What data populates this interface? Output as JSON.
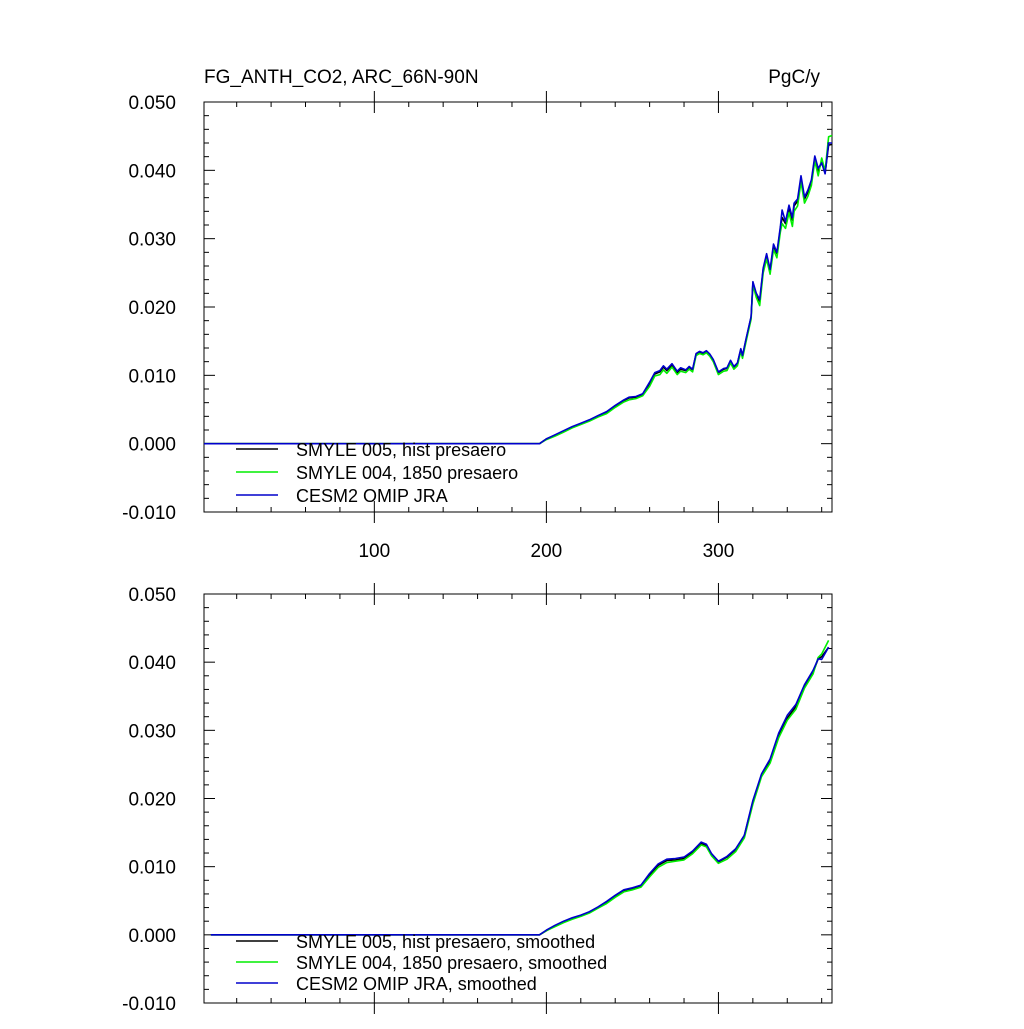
{
  "chart_data": [
    {
      "type": "line",
      "title_left": "FG_ANTH_CO2, ARC_66N-90N",
      "title_right": "PgC/y",
      "xlabel": "",
      "ylabel": "",
      "xlim": [
        1,
        366
      ],
      "ylim": [
        -0.01,
        0.05
      ],
      "x_ticks": [
        100,
        200,
        300
      ],
      "x_tick_labels": [
        "100",
        "200",
        "300"
      ],
      "y_ticks": [
        -0.01,
        0.0,
        0.01,
        0.02,
        0.03,
        0.04,
        0.05
      ],
      "y_tick_labels": [
        "-0.010",
        "0.000",
        "0.010",
        "0.020",
        "0.030",
        "0.040",
        "0.050"
      ],
      "grid": false,
      "legend_position": "bottom-left",
      "series": [
        {
          "name": "SMYLE 005, hist presaero",
          "color": "#000000",
          "x": [
            1,
            196,
            200,
            205,
            210,
            215,
            220,
            225,
            230,
            235,
            240,
            245,
            248,
            252,
            256,
            260,
            263,
            266,
            268,
            270,
            273,
            276,
            278,
            281,
            283,
            285,
            287,
            289,
            291,
            293,
            295,
            297,
            300,
            303,
            305,
            307,
            309,
            311,
            313,
            314,
            316,
            317,
            319,
            320,
            322,
            324,
            326,
            328,
            330,
            332,
            334,
            336,
            337,
            339,
            341,
            343,
            344,
            346,
            348,
            350,
            352,
            354,
            356,
            358,
            360,
            362,
            364,
            366
          ],
          "y": [
            0.0,
            0.0,
            0.0007,
            0.0012,
            0.0018,
            0.0024,
            0.0029,
            0.0034,
            0.004,
            0.0046,
            0.0055,
            0.0063,
            0.0067,
            0.0068,
            0.0072,
            0.0088,
            0.0102,
            0.0105,
            0.0112,
            0.0107,
            0.0115,
            0.0104,
            0.0109,
            0.0107,
            0.0112,
            0.0108,
            0.0131,
            0.0134,
            0.0132,
            0.0135,
            0.013,
            0.0122,
            0.0104,
            0.0109,
            0.011,
            0.0121,
            0.0112,
            0.0117,
            0.0138,
            0.0128,
            0.0152,
            0.0163,
            0.0185,
            0.0235,
            0.0218,
            0.0208,
            0.0255,
            0.0275,
            0.0253,
            0.0289,
            0.0278,
            0.0315,
            0.0331,
            0.0322,
            0.0345,
            0.0327,
            0.0348,
            0.0355,
            0.0388,
            0.0358,
            0.0368,
            0.0383,
            0.0418,
            0.0399,
            0.0412,
            0.0396,
            0.0437,
            0.0438
          ]
        },
        {
          "name": "SMYLE 004, 1850 presaero",
          "color": "#00ee00",
          "x": [
            1,
            196,
            200,
            205,
            210,
            215,
            220,
            225,
            230,
            235,
            240,
            245,
            248,
            252,
            256,
            260,
            263,
            266,
            268,
            270,
            273,
            276,
            278,
            281,
            283,
            285,
            287,
            289,
            291,
            293,
            295,
            297,
            300,
            303,
            305,
            307,
            309,
            311,
            313,
            314,
            316,
            317,
            319,
            320,
            322,
            324,
            326,
            328,
            330,
            332,
            334,
            336,
            337,
            339,
            341,
            343,
            344,
            346,
            348,
            350,
            352,
            354,
            356,
            358,
            360,
            362,
            364,
            366
          ],
          "y": [
            0.0,
            0.0,
            0.0006,
            0.0011,
            0.0017,
            0.0023,
            0.0028,
            0.0033,
            0.0039,
            0.0044,
            0.0053,
            0.0061,
            0.0064,
            0.0066,
            0.007,
            0.0084,
            0.0099,
            0.0101,
            0.0108,
            0.0103,
            0.0112,
            0.0101,
            0.0106,
            0.0104,
            0.0109,
            0.0105,
            0.0129,
            0.0132,
            0.013,
            0.0133,
            0.0128,
            0.012,
            0.0101,
            0.0106,
            0.0107,
            0.0118,
            0.0109,
            0.0114,
            0.0135,
            0.0125,
            0.0149,
            0.016,
            0.0182,
            0.0232,
            0.0214,
            0.0202,
            0.025,
            0.027,
            0.0248,
            0.0284,
            0.0272,
            0.031,
            0.0322,
            0.0315,
            0.0338,
            0.0318,
            0.034,
            0.0348,
            0.0383,
            0.0352,
            0.0362,
            0.0378,
            0.0414,
            0.0392,
            0.0418,
            0.0399,
            0.0449,
            0.0451
          ]
        },
        {
          "name": "CESM2 OMIP JRA",
          "color": "#0000cc",
          "x": [
            1,
            196,
            200,
            205,
            210,
            215,
            220,
            225,
            230,
            235,
            240,
            245,
            248,
            252,
            256,
            260,
            263,
            266,
            268,
            270,
            273,
            276,
            278,
            281,
            283,
            285,
            287,
            289,
            291,
            293,
            295,
            297,
            300,
            303,
            305,
            307,
            309,
            311,
            313,
            314,
            316,
            317,
            319,
            320,
            322,
            324,
            326,
            328,
            330,
            332,
            334,
            336,
            337,
            339,
            341,
            343,
            344,
            346,
            348,
            350,
            352,
            354,
            356,
            358,
            360,
            362,
            364,
            366
          ],
          "y": [
            0.0,
            0.0,
            0.0007,
            0.0013,
            0.0019,
            0.0025,
            0.003,
            0.0035,
            0.0041,
            0.0047,
            0.0056,
            0.0064,
            0.0068,
            0.0069,
            0.0073,
            0.009,
            0.0104,
            0.0107,
            0.0114,
            0.0109,
            0.0117,
            0.0106,
            0.0111,
            0.0108,
            0.0113,
            0.0109,
            0.0132,
            0.0135,
            0.0133,
            0.0136,
            0.0131,
            0.0123,
            0.0105,
            0.011,
            0.0111,
            0.0122,
            0.0113,
            0.0118,
            0.0139,
            0.0129,
            0.0153,
            0.0164,
            0.0186,
            0.0237,
            0.022,
            0.0211,
            0.0257,
            0.0278,
            0.0255,
            0.0292,
            0.028,
            0.0318,
            0.0342,
            0.0325,
            0.0349,
            0.0331,
            0.0352,
            0.0358,
            0.0392,
            0.0361,
            0.0371,
            0.0386,
            0.0421,
            0.0403,
            0.0411,
            0.0395,
            0.044,
            0.044
          ]
        }
      ]
    },
    {
      "type": "line",
      "xlabel": "",
      "ylabel": "",
      "xlim": [
        1,
        366
      ],
      "ylim": [
        -0.01,
        0.05
      ],
      "x_ticks": [
        100,
        200,
        300
      ],
      "y_ticks": [
        -0.01,
        0.0,
        0.01,
        0.02,
        0.03,
        0.04,
        0.05
      ],
      "y_tick_labels": [
        "-0.010",
        "0.000",
        "0.010",
        "0.020",
        "0.030",
        "0.040",
        "0.050"
      ],
      "grid": false,
      "legend_position": "bottom-left",
      "series": [
        {
          "name": "SMYLE 005, hist presaero, smoothed",
          "color": "#000000",
          "x": [
            5,
            196,
            200,
            205,
            210,
            215,
            220,
            225,
            230,
            235,
            240,
            245,
            250,
            255,
            260,
            265,
            270,
            275,
            280,
            285,
            290,
            293,
            296,
            300,
            305,
            310,
            315,
            320,
            325,
            330,
            335,
            340,
            345,
            350,
            355,
            358,
            360,
            364
          ],
          "y": [
            0.0,
            0.0,
            0.0006,
            0.0013,
            0.0019,
            0.0024,
            0.0028,
            0.0033,
            0.004,
            0.0048,
            0.0057,
            0.0065,
            0.0068,
            0.0072,
            0.0088,
            0.0102,
            0.0109,
            0.011,
            0.0112,
            0.0121,
            0.0134,
            0.0131,
            0.0118,
            0.0107,
            0.0114,
            0.0125,
            0.0145,
            0.0195,
            0.0234,
            0.0255,
            0.0292,
            0.0318,
            0.0335,
            0.0364,
            0.0385,
            0.0405,
            0.0408,
            0.0422
          ]
        },
        {
          "name": "SMYLE 004, 1850 presaero, smoothed",
          "color": "#00ee00",
          "x": [
            5,
            196,
            200,
            205,
            210,
            215,
            220,
            225,
            230,
            235,
            240,
            245,
            250,
            255,
            260,
            265,
            270,
            275,
            280,
            285,
            290,
            293,
            296,
            300,
            305,
            310,
            315,
            320,
            325,
            330,
            335,
            340,
            345,
            350,
            355,
            358,
            360,
            364
          ],
          "y": [
            0.0,
            0.0,
            0.0006,
            0.0012,
            0.0018,
            0.0023,
            0.0027,
            0.0032,
            0.0039,
            0.0046,
            0.0055,
            0.0063,
            0.0066,
            0.007,
            0.0085,
            0.0099,
            0.0106,
            0.0108,
            0.011,
            0.0119,
            0.0132,
            0.0129,
            0.0116,
            0.0105,
            0.0111,
            0.0122,
            0.0142,
            0.0192,
            0.0232,
            0.0252,
            0.0289,
            0.0315,
            0.0331,
            0.0362,
            0.0383,
            0.0407,
            0.0412,
            0.0432
          ]
        },
        {
          "name": "CESM2 OMIP JRA, smoothed",
          "color": "#0000cc",
          "x": [
            5,
            196,
            200,
            205,
            210,
            215,
            220,
            225,
            230,
            235,
            240,
            245,
            250,
            255,
            260,
            265,
            270,
            275,
            280,
            285,
            290,
            293,
            296,
            300,
            305,
            310,
            315,
            320,
            325,
            330,
            335,
            340,
            345,
            350,
            355,
            358,
            360,
            364
          ],
          "y": [
            0.0,
            0.0,
            0.0007,
            0.0014,
            0.002,
            0.0025,
            0.0029,
            0.0034,
            0.0041,
            0.0049,
            0.0058,
            0.0066,
            0.0069,
            0.0073,
            0.009,
            0.0104,
            0.0111,
            0.0112,
            0.0114,
            0.0123,
            0.0136,
            0.0133,
            0.0119,
            0.0108,
            0.0115,
            0.0126,
            0.0146,
            0.0197,
            0.0236,
            0.0258,
            0.0296,
            0.0322,
            0.0338,
            0.0367,
            0.0388,
            0.0405,
            0.0404,
            0.0422
          ]
        }
      ]
    }
  ]
}
